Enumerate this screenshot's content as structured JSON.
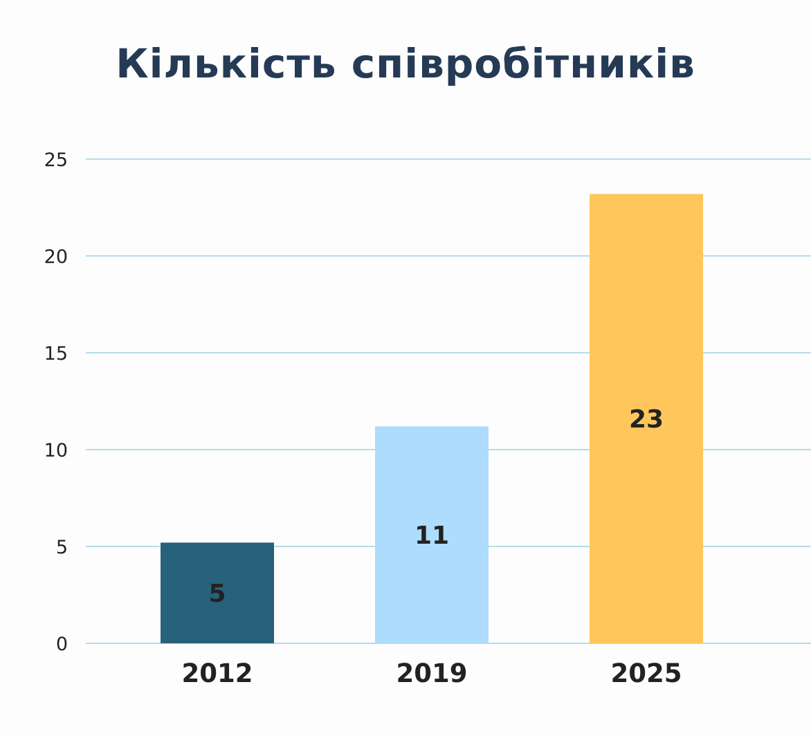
{
  "chart_data": {
    "type": "bar",
    "title": "Кількість співробітників",
    "categories": [
      "2012",
      "2019",
      "2025"
    ],
    "values": [
      5,
      11,
      23
    ],
    "data_labels": [
      "5",
      "11",
      "23"
    ],
    "yticks": [
      "0",
      "5",
      "10",
      "15",
      "20",
      "25"
    ],
    "ylim": [
      0,
      25
    ],
    "grid": true,
    "legend": "none",
    "colors": [
      "#28627a",
      "#addcfd",
      "#ffc65c"
    ],
    "grid_color": "#9fd1e3"
  }
}
